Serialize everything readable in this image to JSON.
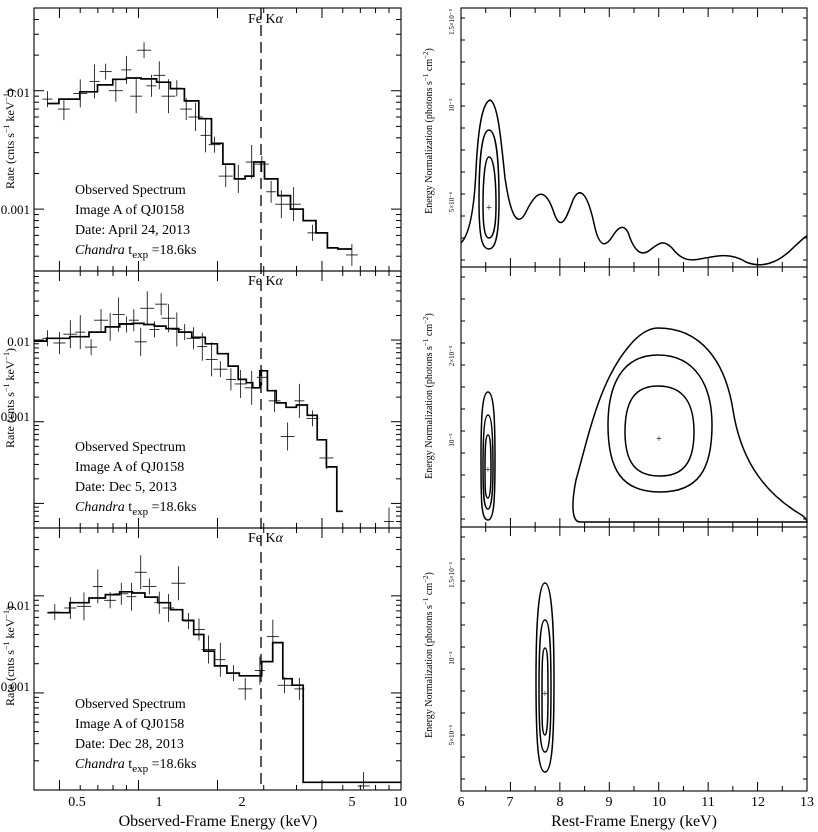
{
  "figure": {
    "xlabel_left": "Observed-Frame Energy (keV)",
    "xlabel_right": "Rest-Frame Energy (keV)",
    "ylabel_left_main": "Rate (cnts s",
    "ylabel_left_sup1": "−1",
    "ylabel_left_mid": " keV",
    "ylabel_left_sup2": "−1",
    "ylabel_left_end": ")",
    "ylabel_right_main": "Energy Normalization (photons s",
    "ylabel_right_sup1": "−1",
    "ylabel_right_mid": " cm",
    "ylabel_right_sup2": "−2",
    "ylabel_right_end": ")",
    "line_label_main": "Fe K",
    "line_label_greek": "α",
    "line_energy_keV": 2.65
  },
  "chart_data": [
    {
      "type": "line",
      "panel": "left-1",
      "xscale": "log",
      "yscale": "log",
      "xlim": [
        0.4,
        10
      ],
      "ylim": [
        0.0003,
        0.05
      ],
      "yticks": [
        0.01,
        0.001
      ],
      "yticklabels": [
        "0.01",
        "0.001"
      ],
      "annotations": [
        "Observed Spectrum",
        "Image A of QJ0158",
        "Date: April 24, 2013",
        "Chandra",
        " t",
        "exp",
        " =18.6ks"
      ],
      "model": {
        "x": [
          0.45,
          0.55,
          0.65,
          0.75,
          0.85,
          0.95,
          1.1,
          1.25,
          1.4,
          1.6,
          1.8,
          2.0,
          2.2,
          2.45,
          2.65,
          2.85,
          3.2,
          3.6,
          4.0,
          4.5,
          5.0,
          5.5,
          6.0,
          6.5
        ],
        "y": [
          0.0078,
          0.0085,
          0.0098,
          0.0112,
          0.0125,
          0.0128,
          0.0126,
          0.0118,
          0.0104,
          0.0082,
          0.0058,
          0.0036,
          0.0024,
          0.0018,
          0.0019,
          0.0025,
          0.0018,
          0.0013,
          0.001,
          0.0008,
          0.00063,
          0.00047,
          0.00046,
          0.00046
        ]
      },
      "data_points": {
        "x": [
          0.45,
          0.52,
          0.6,
          0.68,
          0.75,
          0.82,
          0.9,
          0.98,
          1.05,
          1.12,
          1.2,
          1.3,
          1.4,
          1.52,
          1.65,
          1.8,
          1.95,
          2.15,
          2.4,
          2.7,
          2.95,
          3.2,
          3.5,
          3.9,
          4.6,
          6.5
        ],
        "y": [
          0.0085,
          0.007,
          0.0095,
          0.012,
          0.0145,
          0.01,
          0.015,
          0.009,
          0.022,
          0.011,
          0.0135,
          0.009,
          0.0105,
          0.007,
          0.006,
          0.0042,
          0.0035,
          0.0019,
          0.0018,
          0.0025,
          0.0024,
          0.0014,
          0.0011,
          0.0011,
          0.00063,
          0.00041
        ]
      }
    },
    {
      "type": "line",
      "panel": "left-2",
      "xscale": "log",
      "yscale": "log",
      "xlim": [
        0.4,
        10
      ],
      "ylim": [
        5e-05,
        0.07
      ],
      "yticks": [
        0.01,
        0.001
      ],
      "yticklabels": [
        "0.01",
        "0.001"
      ],
      "annotations": [
        "Observed Spectrum",
        "Image A of QJ0158",
        "Date: Dec 5, 2013",
        "Chandra",
        " t",
        "exp",
        " =18.6ks"
      ],
      "model": {
        "x": [
          0.4,
          0.5,
          0.6,
          0.7,
          0.8,
          0.9,
          1.0,
          1.1,
          1.2,
          1.35,
          1.5,
          1.7,
          1.9,
          2.1,
          2.3,
          2.5,
          2.65,
          2.8,
          3.0,
          3.2,
          3.5,
          3.8,
          4.2,
          4.6,
          5.0,
          5.4,
          6.0
        ],
        "y": [
          0.0097,
          0.0105,
          0.011,
          0.0125,
          0.0145,
          0.0158,
          0.016,
          0.0155,
          0.0148,
          0.0138,
          0.0125,
          0.0108,
          0.009,
          0.0068,
          0.0048,
          0.0033,
          0.003,
          0.0026,
          0.0042,
          0.0024,
          0.0017,
          0.0015,
          0.0016,
          0.0012,
          0.0006,
          0.00028,
          8e-05
        ]
      },
      "data_points": {
        "x": [
          0.45,
          0.5,
          0.55,
          0.6,
          0.66,
          0.72,
          0.78,
          0.84,
          0.9,
          0.96,
          1.02,
          1.08,
          1.15,
          1.22,
          1.3,
          1.4,
          1.5,
          1.62,
          1.75,
          1.9,
          2.05,
          2.25,
          2.45,
          2.7,
          2.95,
          3.3,
          3.7,
          4.1,
          4.6,
          5.2,
          9.0
        ],
        "y": [
          0.0105,
          0.0092,
          0.0118,
          0.0125,
          0.0082,
          0.0175,
          0.0145,
          0.0205,
          0.0155,
          0.0175,
          0.0095,
          0.0245,
          0.0135,
          0.0275,
          0.0185,
          0.0135,
          0.0125,
          0.0105,
          0.0083,
          0.0058,
          0.0044,
          0.0033,
          0.0029,
          0.0026,
          0.0035,
          0.0018,
          0.00066,
          0.0018,
          0.0011,
          0.00036,
          6e-05
        ]
      }
    },
    {
      "type": "line",
      "panel": "left-3",
      "xscale": "log",
      "yscale": "log",
      "xlim": [
        0.4,
        10
      ],
      "ylim": [
        0.0001,
        0.05
      ],
      "yticks": [
        0.01,
        0.001
      ],
      "yticklabels": [
        "0.01",
        "0.001"
      ],
      "annotations": [
        "Observed Spectrum",
        "Image A of QJ0158",
        "Date: Dec 28, 2013",
        "Chandra",
        " t",
        "exp",
        " =18.6ks"
      ],
      "model": {
        "x": [
          0.45,
          0.5,
          0.6,
          0.7,
          0.8,
          0.9,
          1.0,
          1.12,
          1.25,
          1.4,
          1.55,
          1.7,
          1.85,
          2.05,
          2.3,
          2.55,
          2.8,
          3.1,
          3.4,
          3.7,
          4.0,
          4.5,
          10.0
        ],
        "y": [
          0.0067,
          0.0067,
          0.0085,
          0.0095,
          0.0103,
          0.011,
          0.0107,
          0.0097,
          0.0085,
          0.0072,
          0.0056,
          0.004,
          0.0027,
          0.0019,
          0.0016,
          0.0015,
          0.0015,
          0.0021,
          0.0033,
          0.0014,
          0.0012,
          0.00012,
          0.00012
        ]
      },
      "data_points": {
        "x": [
          0.48,
          0.55,
          0.62,
          0.7,
          0.78,
          0.86,
          0.94,
          1.02,
          1.1,
          1.2,
          1.3,
          1.42,
          1.55,
          1.7,
          1.85,
          2.05,
          2.3,
          2.55,
          2.9,
          3.25,
          3.6,
          4.1,
          7.2
        ],
        "y": [
          0.0068,
          0.0075,
          0.0078,
          0.0125,
          0.009,
          0.0105,
          0.0098,
          0.0175,
          0.0125,
          0.0085,
          0.0075,
          0.0135,
          0.0055,
          0.0045,
          0.0028,
          0.0022,
          0.0016,
          0.0011,
          0.0017,
          0.0038,
          0.0012,
          0.0011,
          0.00011
        ]
      }
    },
    {
      "type": "contour",
      "panel": "right-1",
      "xlim": [
        6,
        13
      ],
      "ylim": [
        0,
        1.5e-05
      ],
      "yticklabels": [
        "5×10⁻⁶",
        "10⁻⁵",
        "1.5×10⁻⁵"
      ],
      "best_fit": {
        "x": 6.55,
        "y": 3.7e-06
      },
      "levels": 3
    },
    {
      "type": "contour",
      "panel": "right-2",
      "xlim": [
        6,
        13
      ],
      "ylim": [
        0,
        2.8e-05
      ],
      "yticklabels": [
        "10⁻⁵",
        "2×10⁻⁵"
      ],
      "best_fit": [
        {
          "x": 6.55,
          "y": 7.2e-06
        },
        {
          "x": 10.0,
          "y": 1.03e-05
        }
      ],
      "levels": 3
    },
    {
      "type": "contour",
      "panel": "right-3",
      "xlim": [
        6,
        13
      ],
      "ylim": [
        0,
        2.1e-05
      ],
      "yticklabels": [
        "5×10⁻⁶",
        "10⁻⁵",
        "1.5×10⁻⁵"
      ],
      "best_fit": {
        "x": 7.7,
        "y": 7.2e-06
      },
      "xticks": [
        6,
        7,
        8,
        9,
        10,
        11,
        12,
        13
      ],
      "xticklabels": [
        "6",
        "7",
        "8",
        "9",
        "10",
        "11",
        "12",
        "13"
      ],
      "levels": 3
    }
  ],
  "left_xaxis": {
    "ticks": [
      0.5,
      1,
      2,
      5,
      10
    ],
    "ticklabels": [
      "0.5",
      "1",
      "2",
      "5",
      "10"
    ]
  }
}
